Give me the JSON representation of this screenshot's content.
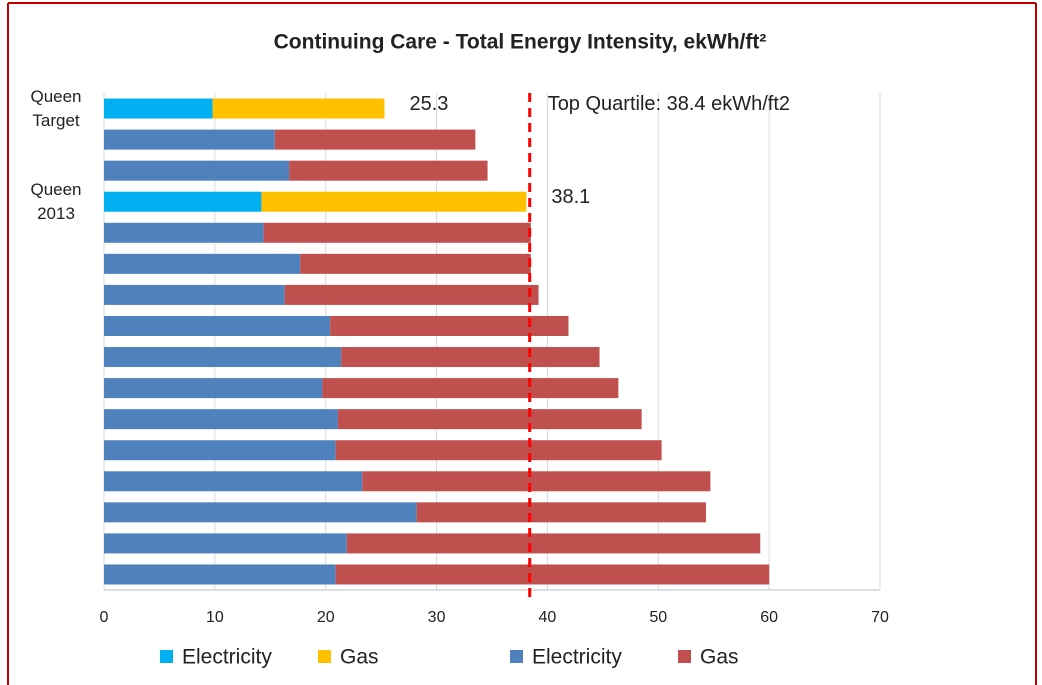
{
  "chart_data": {
    "type": "stacked-bar-horizontal",
    "title": "Continuing Care - Total Energy Intensity, ekWh/ft²",
    "categories": [
      "Queen Target",
      null,
      null,
      "Queen 2013",
      null,
      null,
      null,
      null,
      null,
      null,
      null,
      null,
      null,
      null,
      null,
      null
    ],
    "series": [
      {
        "name": "Electricity",
        "color": "#00b0f0",
        "values": [
          9.8,
          null,
          null,
          14.2,
          null,
          null,
          null,
          null,
          null,
          null,
          null,
          null,
          null,
          null,
          null,
          null
        ]
      },
      {
        "name": "Gas",
        "color": "#ffc000",
        "values": [
          15.5,
          null,
          null,
          23.9,
          null,
          null,
          null,
          null,
          null,
          null,
          null,
          null,
          null,
          null,
          null,
          null
        ]
      },
      {
        "name": "Electricity",
        "color": "#4f81bd",
        "values": [
          null,
          15.4,
          16.7,
          null,
          14.4,
          17.7,
          16.3,
          20.4,
          21.4,
          19.7,
          21.1,
          20.9,
          23.3,
          28.2,
          21.9,
          20.9
        ]
      },
      {
        "name": "Gas",
        "color": "#c0504d",
        "values": [
          null,
          18.1,
          17.9,
          null,
          24.1,
          20.8,
          22.9,
          21.5,
          23.3,
          26.7,
          27.4,
          29.4,
          31.4,
          26.1,
          37.3,
          39.1
        ]
      }
    ],
    "annotations": [
      {
        "text": "25.3",
        "value": 25.3,
        "row": 0
      },
      {
        "text": "38.1",
        "value": 38.1,
        "row": 3
      }
    ],
    "reference_line": {
      "value": 38.4,
      "label": "Top Quartile: 38.4 ekWh/ft2",
      "color": "#ff0000"
    },
    "xlim": [
      0,
      70
    ],
    "xticks": [
      0,
      10,
      20,
      30,
      40,
      50,
      60,
      70
    ],
    "grid": true
  }
}
